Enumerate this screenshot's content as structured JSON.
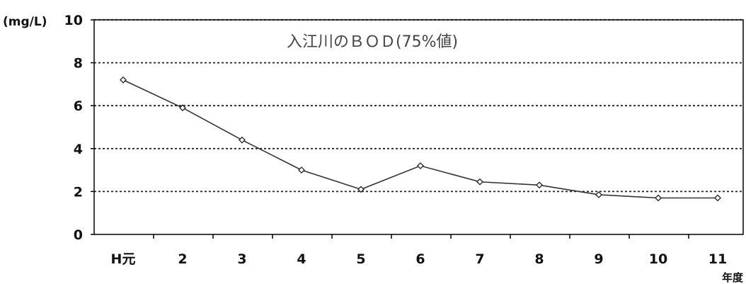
{
  "chart_data": {
    "type": "line",
    "title": "入江川のＢＯＤ(75%値)",
    "ylabel": "(mg/L)",
    "xlabel": "年度",
    "ylim": [
      0,
      10
    ],
    "y_ticks": [
      "0",
      "2",
      "4",
      "6",
      "8",
      "10"
    ],
    "categories": [
      "H元",
      "2",
      "3",
      "4",
      "5",
      "6",
      "7",
      "8",
      "9",
      "10",
      "11"
    ],
    "series": [
      {
        "values": [
          7.2,
          5.9,
          4.4,
          3.0,
          2.1,
          3.2,
          2.45,
          2.3,
          1.85,
          1.7,
          1.7
        ]
      }
    ],
    "grid": "dotted horizontal",
    "colors": {
      "line": "#333333",
      "grid": "#222222",
      "axis": "#000000"
    }
  }
}
